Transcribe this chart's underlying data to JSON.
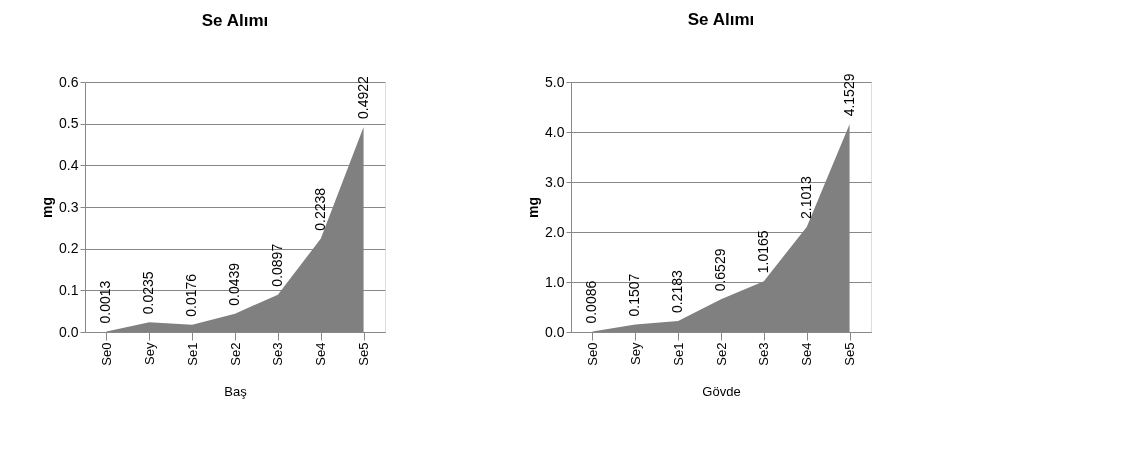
{
  "chart_data": [
    {
      "type": "area",
      "title": "Se Alımı",
      "ylabel": "mg",
      "xlabel": "Baş",
      "categories": [
        "Se0",
        "Sey",
        "Se1",
        "Se2",
        "Se3",
        "Se4",
        "Se5"
      ],
      "series": [
        {
          "color": "#808080",
          "values": [
            0.0013,
            0.0235,
            0.0176,
            0.0439,
            0.0897,
            0.2238,
            0.4922
          ]
        }
      ],
      "ylim": [
        0,
        0.6
      ],
      "yticks": [
        {
          "value": 0,
          "label": "0.0"
        },
        0.1,
        0.2,
        0.3,
        0.4,
        0.5,
        0.6
      ],
      "grid": "y",
      "data_labels": true
    },
    {
      "type": "area",
      "title": "Se Alımı",
      "ylabel": "mg",
      "xlabel": "Gövde",
      "categories": [
        "Se0",
        "Sey",
        "Se1",
        "Se2",
        "Se3",
        "Se4",
        "Se5"
      ],
      "series": [
        {
          "color": "#808080",
          "values": [
            0.0086,
            0.1507,
            0.2183,
            0.6529,
            1.0165,
            2.1013,
            4.1529
          ]
        }
      ],
      "ylim": [
        0,
        5
      ],
      "yticks": [
        {
          "value": 0,
          "label": "0.0"
        },
        {
          "value": 1,
          "label": "1.0"
        },
        {
          "value": 2,
          "label": "2.0"
        },
        {
          "value": 3,
          "label": "3.0"
        },
        {
          "value": 4,
          "label": "4.0"
        },
        {
          "value": 5,
          "label": "5.0"
        }
      ],
      "grid": "y",
      "data_labels": true
    }
  ]
}
